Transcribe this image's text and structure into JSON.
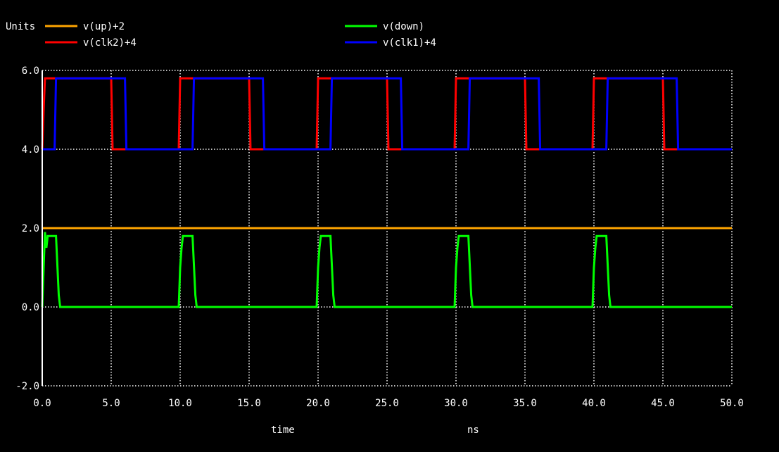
{
  "chart_data": {
    "type": "line",
    "ylabel": "Units",
    "xlabel": "time",
    "xunit": "ns",
    "xlim": [
      0,
      50
    ],
    "ylim": [
      -2,
      6
    ],
    "xticks": [
      0,
      5,
      10,
      15,
      20,
      25,
      30,
      35,
      40,
      45,
      50
    ],
    "yticks": [
      -2,
      0,
      2,
      4,
      6
    ],
    "xtick_labels": [
      "0.0",
      "5.0",
      "10.0",
      "15.0",
      "20.0",
      "25.0",
      "30.0",
      "35.0",
      "40.0",
      "45.0",
      "50.0"
    ],
    "ytick_labels": [
      "-2.0",
      "0.0",
      "2.0",
      "4.0",
      "6.0"
    ],
    "grid": true,
    "legend_position": "top",
    "series": [
      {
        "name": "v(up)+2",
        "color": "#ffa500",
        "x": [
          0,
          50
        ],
        "y": [
          2,
          2
        ]
      },
      {
        "name": "v(clk2)+4",
        "color": "#ff0000",
        "x": [
          0,
          0.1,
          0.2,
          5.0,
          5.1,
          9.9,
          10.0,
          15.0,
          15.1,
          19.9,
          20.0,
          25.0,
          25.1,
          29.9,
          30.0,
          35.0,
          35.1,
          39.9,
          40.0,
          45.0,
          45.1,
          50.0
        ],
        "y": [
          4.0,
          5.0,
          5.8,
          5.8,
          4.0,
          4.0,
          5.8,
          5.8,
          4.0,
          4.0,
          5.8,
          5.8,
          4.0,
          4.0,
          5.8,
          5.8,
          4.0,
          4.0,
          5.8,
          5.8,
          4.0,
          4.0
        ]
      },
      {
        "name": "v(down)",
        "color": "#00ff00",
        "x": [
          0,
          0.1,
          0.2,
          0.3,
          0.4,
          0.5,
          0.7,
          0.8,
          1.0,
          1.2,
          1.3,
          1.5,
          9.9,
          10.0,
          10.1,
          10.2,
          10.5,
          10.7,
          10.9,
          11.1,
          11.2,
          11.5,
          19.9,
          20.0,
          20.1,
          20.2,
          20.5,
          20.7,
          20.9,
          21.1,
          21.2,
          21.5,
          29.9,
          30.0,
          30.1,
          30.2,
          30.5,
          30.7,
          30.9,
          31.1,
          31.2,
          31.5,
          39.9,
          40.0,
          40.1,
          40.2,
          40.5,
          40.7,
          40.9,
          41.1,
          41.2,
          41.5,
          50.0
        ],
        "y": [
          0,
          1.0,
          1.9,
          1.5,
          1.8,
          1.8,
          1.8,
          1.8,
          1.8,
          0.3,
          0.0,
          0,
          0,
          1.0,
          1.5,
          1.8,
          1.8,
          1.8,
          1.8,
          0.3,
          0.0,
          0,
          0,
          1.0,
          1.5,
          1.8,
          1.8,
          1.8,
          1.8,
          0.3,
          0.0,
          0,
          0,
          1.0,
          1.5,
          1.8,
          1.8,
          1.8,
          1.8,
          0.3,
          0.0,
          0,
          0,
          1.0,
          1.5,
          1.8,
          1.8,
          1.8,
          1.8,
          0.3,
          0.0,
          0,
          0
        ]
      },
      {
        "name": "v(clk1)+4",
        "color": "#0000ff",
        "x": [
          0,
          0.9,
          1.0,
          6.0,
          6.1,
          10.9,
          11.0,
          16.0,
          16.1,
          20.9,
          21.0,
          26.0,
          26.1,
          30.9,
          31.0,
          36.0,
          36.1,
          40.9,
          41.0,
          46.0,
          46.1,
          50.0
        ],
        "y": [
          4.0,
          4.0,
          5.8,
          5.8,
          4.0,
          4.0,
          5.8,
          5.8,
          4.0,
          4.0,
          5.8,
          5.8,
          4.0,
          4.0,
          5.8,
          5.8,
          4.0,
          4.0,
          5.8,
          5.8,
          4.0,
          4.0
        ]
      }
    ]
  }
}
